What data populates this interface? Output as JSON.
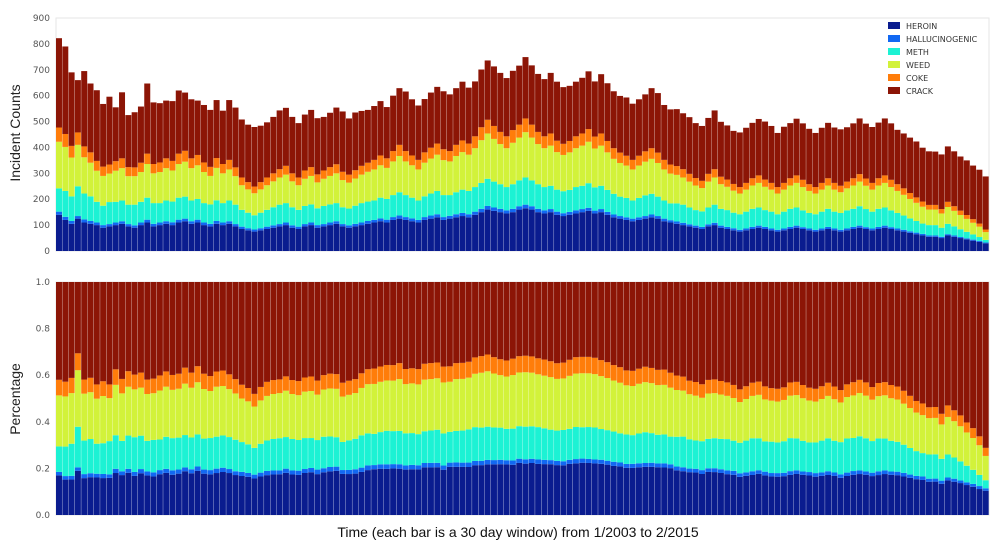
{
  "figure": {
    "xlabel": "Time (each bar is a 30 day window) from 1/2003 to 2/2015"
  },
  "chart_data": [
    {
      "type": "bar",
      "stacked": true,
      "ylabel": "Incident Counts",
      "ylim": [
        0,
        900
      ],
      "yticks": [
        "0",
        "100",
        "200",
        "300",
        "400",
        "500",
        "600",
        "700",
        "800",
        "900"
      ],
      "legend": {
        "placement": "top-right",
        "entries": [
          "HEROIN",
          "HALLUCINOGENIC",
          "METH",
          "WEED",
          "COKE",
          "CRACK"
        ]
      },
      "grid": false,
      "x_window_count": 148,
      "series_colors": [
        "#0a1c8f",
        "#1268f2",
        "#1cf2d4",
        "#d2f23a",
        "#ff7d0a",
        "#8c1506"
      ],
      "series": [
        {
          "name": "HEROIN",
          "values": [
            140,
            120,
            105,
            125,
            110,
            105,
            100,
            90,
            95,
            100,
            105,
            95,
            90,
            100,
            110,
            95,
            100,
            105,
            100,
            110,
            115,
            105,
            110,
            100,
            95,
            105,
            100,
            105,
            95,
            85,
            80,
            75,
            80,
            85,
            90,
            95,
            100,
            90,
            85,
            95,
            100,
            90,
            95,
            100,
            105,
            95,
            90,
            95,
            100,
            105,
            110,
            115,
            110,
            120,
            125,
            120,
            115,
            110,
            120,
            125,
            130,
            120,
            125,
            130,
            135,
            130,
            140,
            150,
            160,
            155,
            150,
            145,
            150,
            160,
            165,
            160,
            150,
            145,
            150,
            140,
            135,
            140,
            145,
            150,
            155,
            145,
            150,
            140,
            130,
            125,
            120,
            115,
            120,
            125,
            130,
            125,
            115,
            110,
            105,
            100,
            95,
            90,
            85,
            95,
            100,
            90,
            85,
            80,
            75,
            80,
            85,
            90,
            85,
            80,
            75,
            80,
            85,
            90,
            85,
            80,
            75,
            80,
            85,
            80,
            75,
            80,
            85,
            90,
            85,
            80,
            85,
            90,
            85,
            80,
            75,
            70,
            65,
            60,
            55,
            55,
            50,
            60,
            55,
            50,
            45,
            40,
            35,
            30
          ]
        },
        {
          "name": "HALLUCINOGENIC",
          "values": [
            12,
            12,
            11,
            10,
            12,
            11,
            10,
            10,
            9,
            10,
            10,
            9,
            9,
            10,
            11,
            10,
            10,
            10,
            11,
            11,
            10,
            10,
            11,
            10,
            10,
            11,
            10,
            10,
            9,
            9,
            8,
            8,
            8,
            9,
            9,
            9,
            10,
            9,
            9,
            9,
            10,
            10,
            9,
            10,
            10,
            9,
            9,
            10,
            10,
            11,
            10,
            11,
            11,
            11,
            12,
            11,
            11,
            10,
            11,
            12,
            12,
            11,
            11,
            12,
            12,
            12,
            12,
            13,
            14,
            13,
            13,
            12,
            13,
            13,
            14,
            13,
            13,
            12,
            12,
            12,
            11,
            11,
            12,
            12,
            12,
            11,
            12,
            11,
            11,
            10,
            10,
            10,
            10,
            10,
            11,
            10,
            10,
            9,
            9,
            9,
            8,
            8,
            8,
            8,
            9,
            8,
            8,
            8,
            7,
            7,
            8,
            8,
            8,
            7,
            7,
            7,
            8,
            8,
            7,
            7,
            7,
            7,
            8,
            7,
            7,
            7,
            8,
            8,
            7,
            7,
            8,
            8,
            7,
            7,
            7,
            6,
            6,
            6,
            5,
            5,
            5,
            5,
            5,
            4,
            4,
            4,
            4,
            3
          ]
        },
        {
          "name": "METH",
          "values": [
            90,
            100,
            95,
            115,
            100,
            95,
            80,
            75,
            85,
            80,
            80,
            75,
            80,
            80,
            85,
            80,
            75,
            80,
            80,
            85,
            85,
            80,
            80,
            75,
            75,
            80,
            75,
            80,
            75,
            65,
            60,
            55,
            60,
            65,
            70,
            75,
            75,
            70,
            65,
            70,
            70,
            65,
            70,
            70,
            70,
            65,
            65,
            70,
            75,
            75,
            75,
            80,
            80,
            85,
            90,
            85,
            80,
            75,
            80,
            85,
            90,
            85,
            80,
            85,
            90,
            90,
            95,
            100,
            105,
            100,
            95,
            90,
            95,
            100,
            105,
            100,
            95,
            90,
            90,
            85,
            85,
            85,
            90,
            90,
            95,
            90,
            90,
            85,
            80,
            75,
            75,
            70,
            75,
            80,
            80,
            75,
            70,
            65,
            70,
            70,
            65,
            60,
            60,
            65,
            70,
            65,
            65,
            60,
            60,
            65,
            70,
            70,
            65,
            65,
            60,
            65,
            70,
            70,
            65,
            60,
            60,
            65,
            70,
            65,
            65,
            70,
            70,
            75,
            70,
            65,
            70,
            70,
            65,
            60,
            55,
            50,
            45,
            40,
            40,
            40,
            35,
            40,
            35,
            30,
            25,
            20,
            15,
            10
          ]
        },
        {
          "name": "WEED",
          "values": [
            180,
            170,
            150,
            160,
            140,
            130,
            120,
            115,
            110,
            120,
            125,
            110,
            110,
            115,
            130,
            115,
            120,
            125,
            120,
            130,
            135,
            125,
            130,
            120,
            110,
            125,
            115,
            120,
            110,
            95,
            90,
            85,
            90,
            95,
            100,
            105,
            110,
            100,
            95,
            105,
            110,
            100,
            105,
            110,
            115,
            105,
            100,
            105,
            110,
            115,
            120,
            125,
            120,
            130,
            140,
            130,
            125,
            120,
            130,
            135,
            140,
            135,
            130,
            140,
            145,
            140,
            150,
            165,
            175,
            165,
            155,
            150,
            160,
            165,
            175,
            165,
            155,
            150,
            155,
            145,
            140,
            145,
            150,
            155,
            160,
            150,
            155,
            145,
            135,
            130,
            125,
            120,
            125,
            130,
            135,
            130,
            120,
            115,
            110,
            105,
            100,
            95,
            90,
            100,
            105,
            95,
            90,
            85,
            80,
            85,
            90,
            95,
            90,
            85,
            80,
            85,
            90,
            95,
            90,
            85,
            80,
            85,
            90,
            85,
            80,
            85,
            90,
            95,
            90,
            85,
            90,
            95,
            90,
            85,
            80,
            75,
            70,
            65,
            60,
            60,
            55,
            65,
            60,
            55,
            50,
            45,
            40,
            30
          ]
        },
        {
          "name": "COKE",
          "values": [
            55,
            50,
            45,
            48,
            42,
            40,
            38,
            36,
            35,
            37,
            38,
            35,
            34,
            36,
            40,
            36,
            37,
            38,
            37,
            40,
            42,
            38,
            40,
            37,
            35,
            38,
            36,
            37,
            34,
            30,
            28,
            26,
            28,
            30,
            31,
            32,
            34,
            31,
            30,
            32,
            34,
            31,
            32,
            34,
            35,
            32,
            31,
            32,
            34,
            35,
            37,
            38,
            37,
            40,
            43,
            40,
            38,
            37,
            40,
            42,
            43,
            42,
            40,
            43,
            45,
            43,
            46,
            50,
            53,
            50,
            47,
            46,
            49,
            50,
            53,
            50,
            47,
            46,
            47,
            44,
            43,
            44,
            46,
            47,
            49,
            46,
            47,
            44,
            41,
            40,
            38,
            37,
            38,
            40,
            41,
            40,
            37,
            35,
            34,
            32,
            30,
            29,
            28,
            30,
            32,
            29,
            28,
            26,
            25,
            26,
            28,
            29,
            28,
            26,
            25,
            26,
            28,
            29,
            28,
            26,
            25,
            26,
            28,
            26,
            25,
            26,
            28,
            29,
            28,
            26,
            28,
            29,
            28,
            26,
            25,
            23,
            21,
            20,
            18,
            18,
            17,
            20,
            18,
            17,
            15,
            14,
            12,
            10
          ]
        },
        {
          "name": "CRACK",
          "values": [
            345,
            338,
            284,
            202,
            291,
            266,
            273,
            242,
            262,
            208,
            255,
            201,
            213,
            217,
            271,
            238,
            229,
            223,
            231,
            244,
            225,
            228,
            210,
            222,
            220,
            224,
            206,
            231,
            231,
            224,
            222,
            230,
            218,
            213,
            218,
            227,
            224,
            218,
            210,
            216,
            221,
            217,
            207,
            210,
            219,
            233,
            217,
            223,
            212,
            204,
            208,
            210,
            198,
            214,
            219,
            230,
            217,
            210,
            206,
            213,
            219,
            224,
            219,
            219,
            227,
            216,
            212,
            223,
            229,
            230,
            228,
            225,
            229,
            228,
            237,
            229,
            224,
            221,
            234,
            228,
            219,
            213,
            211,
            215,
            223,
            213,
            229,
            223,
            220,
            219,
            225,
            217,
            218,
            220,
            232,
            230,
            212,
            213,
            220,
            216,
            219,
            212,
            212,
            216,
            227,
            212,
            209,
            205,
            211,
            213,
            214,
            218,
            224,
            220,
            209,
            217,
            213,
            219,
            218,
            214,
            209,
            213,
            214,
            214,
            218,
            210,
            212,
            215,
            212,
            216,
            215,
            220,
            218,
            210,
            212,
            214,
            216,
            208,
            207,
            206,
            211,
            214,
            212,
            209,
            211,
            207,
            208,
            205
          ]
        }
      ]
    },
    {
      "type": "bar",
      "stacked": true,
      "ylabel": "Percentage",
      "ylim": [
        0,
        1.0
      ],
      "yticks": [
        "0.0",
        "0.2",
        "0.4",
        "0.6",
        "0.8",
        "1.0"
      ],
      "grid": false,
      "note_from_image": "same windows as above, each stack normalized to 1.0"
    }
  ]
}
